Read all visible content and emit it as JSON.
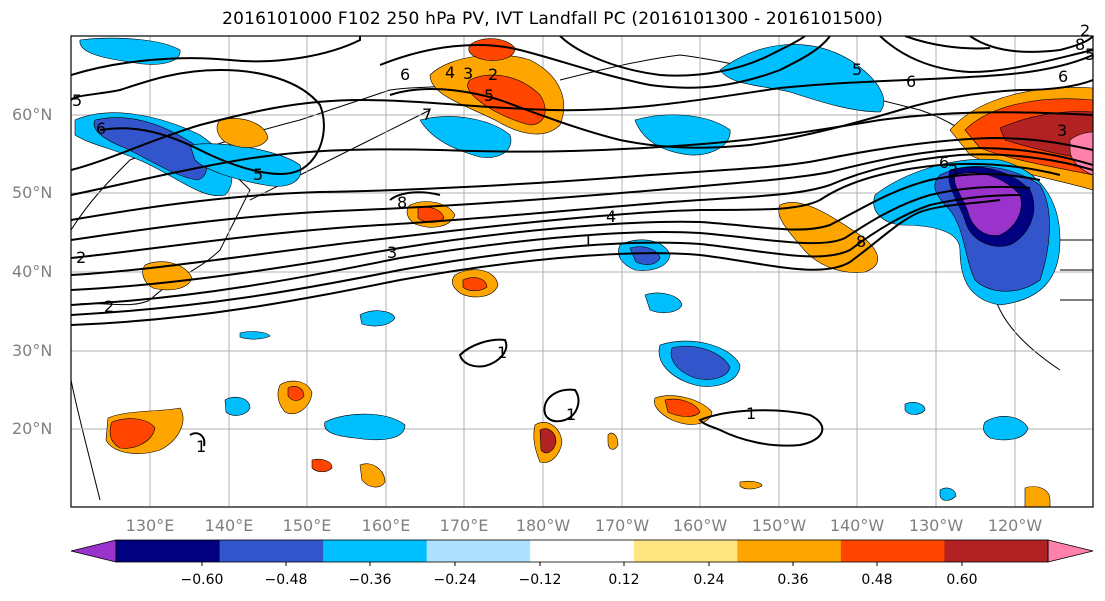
{
  "title": "2016101000 F102 250 hPa PV, IVT Landfall PC (2016101300 - 2016101500)",
  "lat_labels": [
    "60°N",
    "50°N",
    "40°N",
    "30°N",
    "20°N"
  ],
  "lon_labels": [
    "130°E",
    "140°E",
    "150°E",
    "160°E",
    "170°E",
    "180°W",
    "170°W",
    "160°W",
    "150°W",
    "140°W",
    "130°W",
    "120°W"
  ],
  "colorbar": {
    "colors": [
      "#9933cc",
      "#000080",
      "#3355cc",
      "#00bfff",
      "#b0e0ff",
      "#ffffff",
      "#ffe680",
      "#ffa500",
      "#ff4500",
      "#b22222",
      "#ff80aa"
    ],
    "tick_labels": [
      "−0.60",
      "−0.48",
      "−0.36",
      "−0.24",
      "−0.12",
      "0.12",
      "0.24",
      "0.36",
      "0.48",
      "0.60"
    ]
  },
  "contour_labels": [
    "5",
    "6",
    "6",
    "5",
    "4",
    "3",
    "2",
    "5",
    "6",
    "6",
    "3",
    "5",
    "8",
    "4",
    "1",
    "3",
    "8",
    "2",
    "2",
    "1",
    "1",
    "1",
    "1",
    "7",
    "6",
    "3",
    "8",
    "5",
    "2"
  ]
}
